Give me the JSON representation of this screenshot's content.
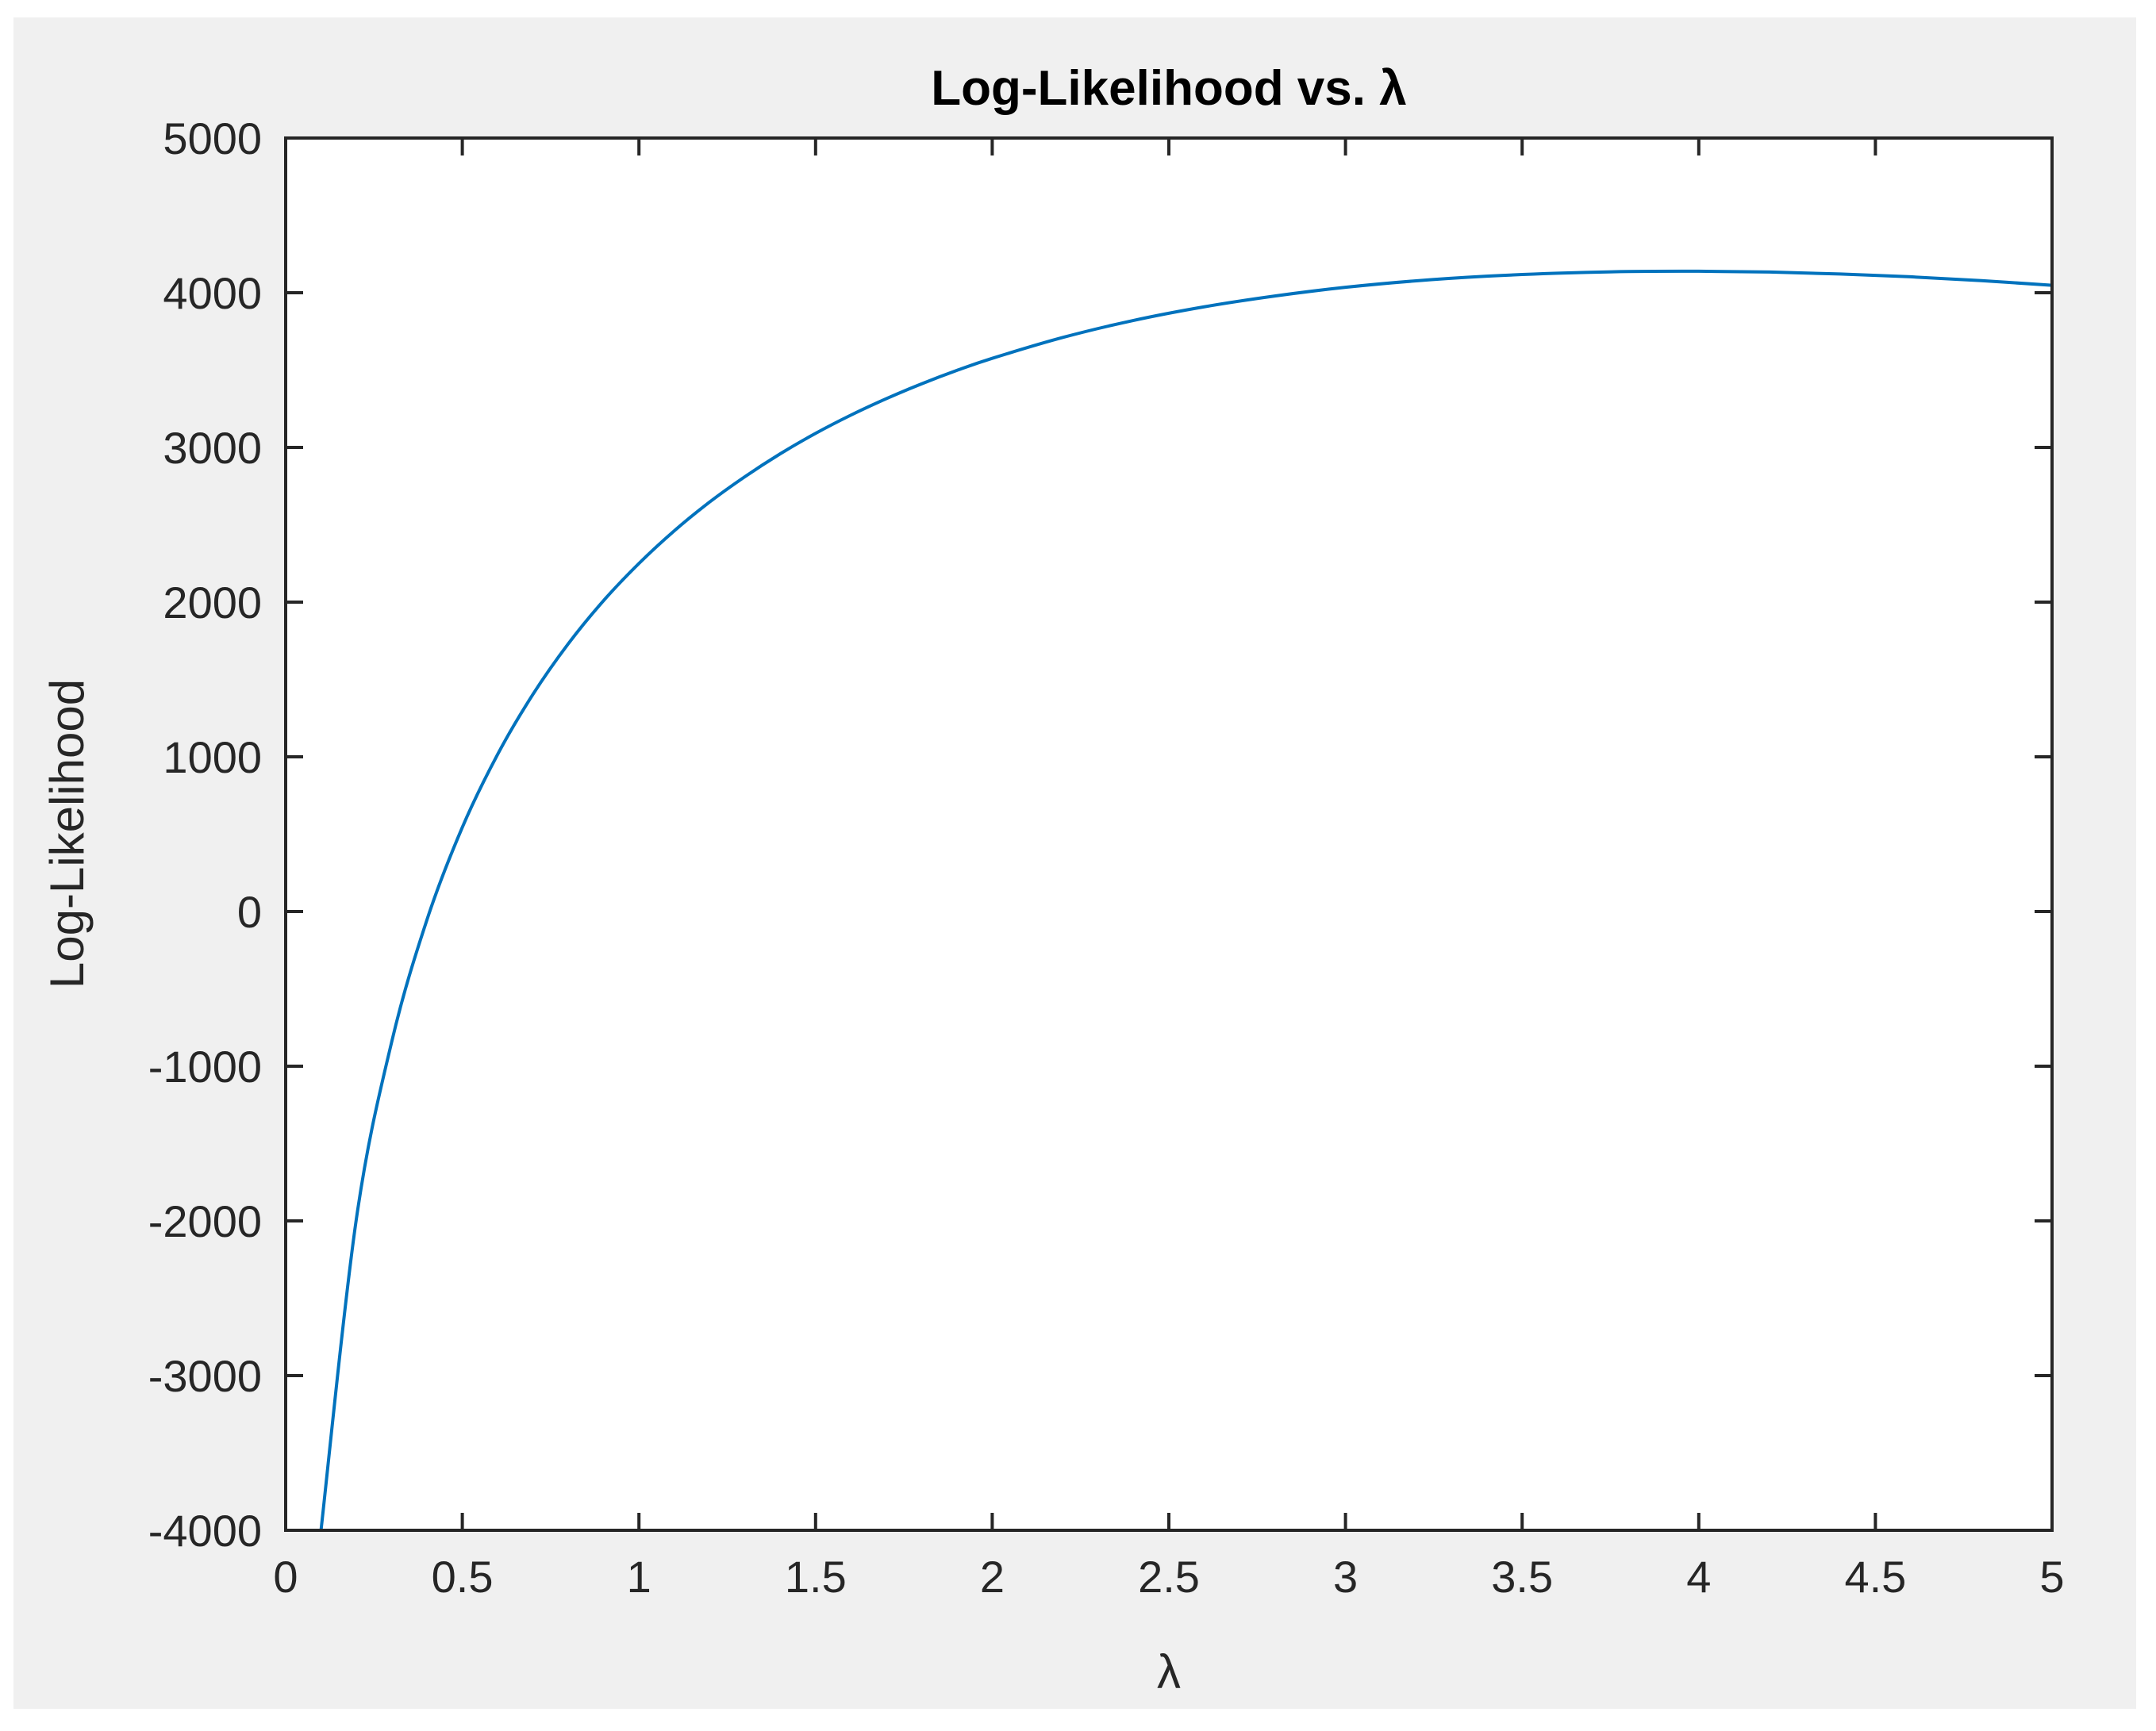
{
  "chart_data": {
    "type": "line",
    "title": "Log-Likelihood vs. λ",
    "xlabel": "λ",
    "ylabel": "Log-Likelihood",
    "xlim": [
      0,
      5
    ],
    "ylim": [
      -4000,
      5000
    ],
    "grid": false,
    "x_ticks": [
      "0",
      "0.5",
      "1",
      "1.5",
      "2",
      "2.5",
      "3",
      "3.5",
      "4",
      "4.5",
      "5"
    ],
    "y_ticks": [
      "-4000",
      "-3000",
      "-2000",
      "-1000",
      "0",
      "1000",
      "2000",
      "3000",
      "4000",
      "5000"
    ],
    "colors": {
      "line": "#0072bd",
      "figure_bg": "#f0f0f0",
      "axes_bg": "#ffffff",
      "axes": "#262626"
    },
    "series": [
      {
        "x": [
          0.1,
          0.2,
          0.3,
          0.4,
          0.5,
          0.6,
          0.7,
          0.8,
          0.9,
          1.0,
          1.1,
          1.2,
          1.3,
          1.4,
          1.5,
          1.6,
          1.7,
          1.8,
          1.9,
          2.0,
          2.2,
          2.4,
          2.6,
          2.8,
          3.0,
          3.2,
          3.4,
          3.6,
          3.8,
          4.0,
          4.2,
          4.4,
          4.6,
          4.8,
          5.0
        ],
        "y": [
          -4001,
          -1989,
          -844,
          -53,
          544,
          1016,
          1404,
          1731,
          2010,
          2250,
          2461,
          2647,
          2811,
          2959,
          3091,
          3209,
          3315,
          3411,
          3498,
          3576,
          3711,
          3821,
          3909,
          3979,
          4035,
          4077,
          4107,
          4126,
          4137,
          4139,
          4134,
          4121,
          4103,
          4078,
          4048
        ]
      }
    ]
  }
}
